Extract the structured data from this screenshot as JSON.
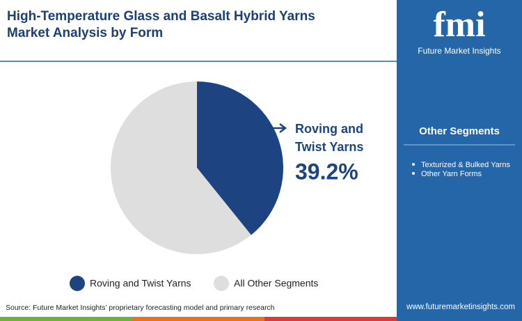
{
  "chart_data": {
    "type": "pie",
    "title": "High-Temperature Glass and Basalt Hybrid Yarns Market Analysis by Form",
    "categories": [
      "Roving and Twist Yarns",
      "All Other Segments"
    ],
    "values": [
      39.2,
      60.8
    ],
    "value_labels": [
      "39.2%",
      null
    ],
    "colors": [
      "#1d4480",
      "#dedede"
    ],
    "legend": "bottom"
  },
  "sidebar": {
    "brand": "fmi",
    "brand_name": "Future Market Insights",
    "heading": "Other Segments",
    "items": [
      "Texturized & Bulked Yarns",
      "Other Yarn Forms"
    ],
    "website": "www.futuremarketinsights.com"
  },
  "source": "Source: Future Market Insights’ proprietary forecasting model and primary research"
}
